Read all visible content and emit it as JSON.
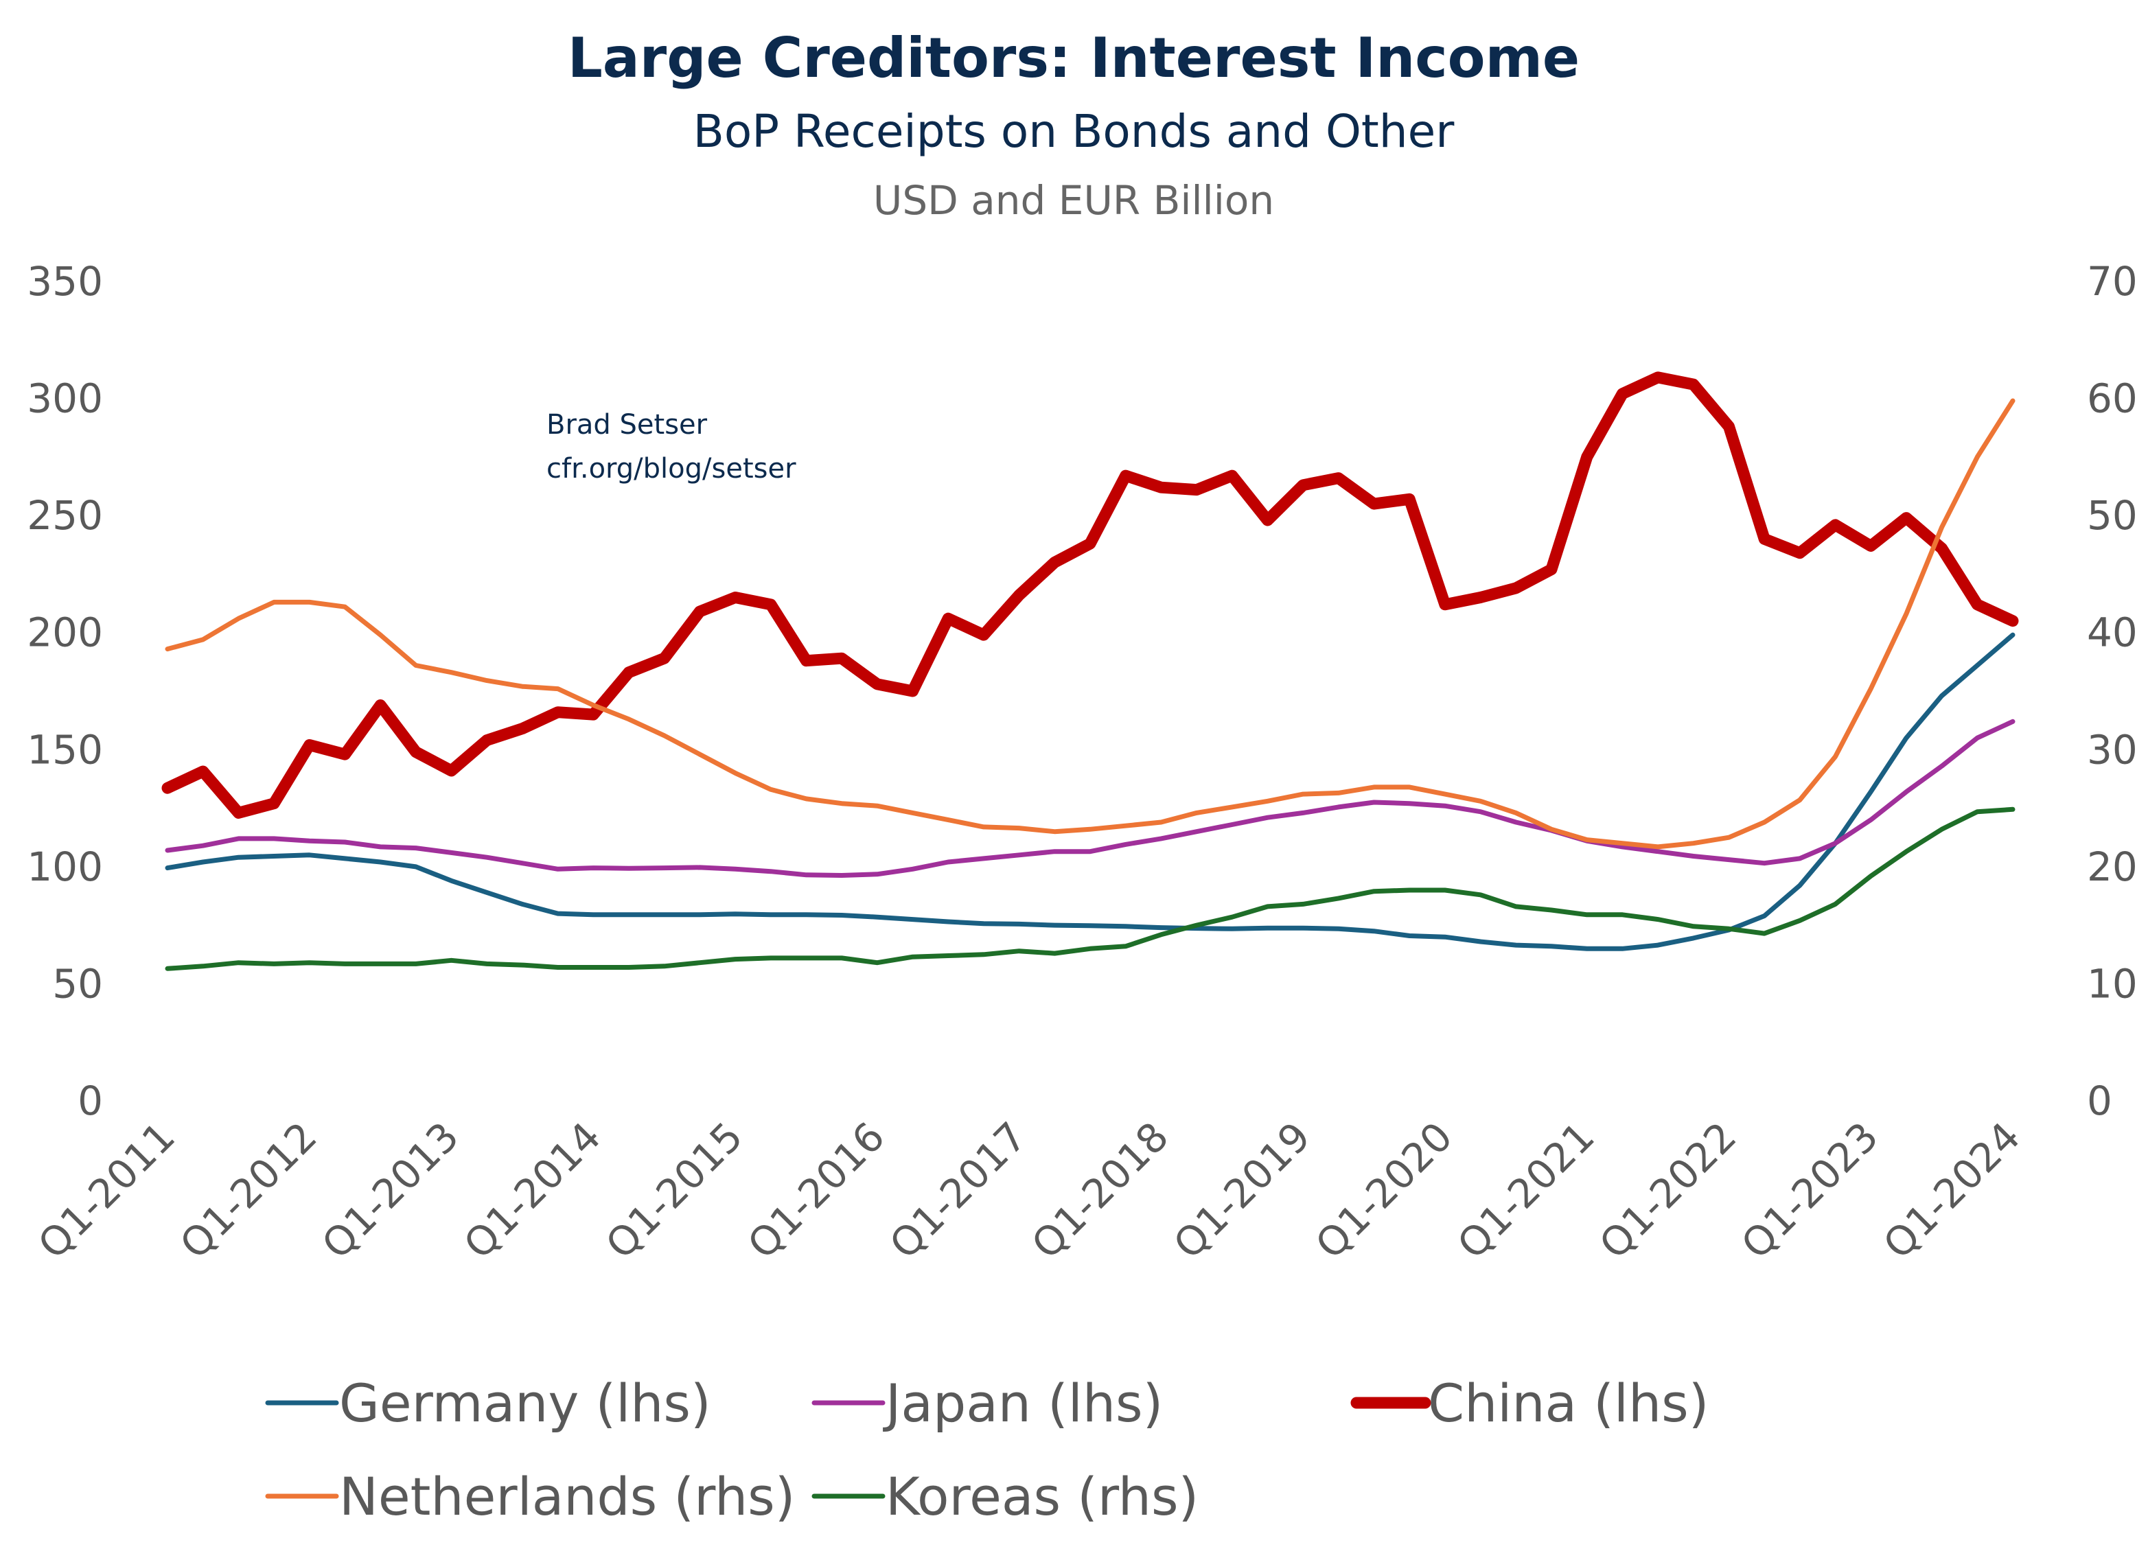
{
  "chart_data": {
    "type": "line",
    "title": "Large Creditors: Interest Income",
    "subtitle": "BoP Receipts on Bonds and Other",
    "units": "USD and EUR Billion",
    "annotation": [
      "Brad Setser",
      "cfr.org/blog/setser"
    ],
    "x_tick_labels": [
      "Q1-2011",
      "Q1-2012",
      "Q1-2013",
      "Q1-2014",
      "Q1-2015",
      "Q1-2016",
      "Q1-2017",
      "Q1-2018",
      "Q1-2019",
      "Q1-2020",
      "Q1-2021",
      "Q1-2022",
      "Q1-2023",
      "Q1-2024"
    ],
    "x_start": "Q1-2011",
    "x_end": "Q1-2024",
    "x_frequency": "quarterly",
    "y_left": {
      "range": [
        0,
        350
      ],
      "ticks": [
        0,
        50,
        100,
        150,
        200,
        250,
        300,
        350
      ]
    },
    "y_right": {
      "range": [
        0,
        70
      ],
      "ticks": [
        0,
        10,
        20,
        30,
        40,
        50,
        60,
        70
      ]
    },
    "grid": false,
    "legend_position": "bottom",
    "series": [
      {
        "name": "Germany (lhs)",
        "axis": "left",
        "color": "#1a5f82",
        "width": "normal",
        "values": [
          99.5,
          102,
          104,
          104.5,
          105,
          103.5,
          102,
          100,
          94,
          89,
          84,
          80,
          79.5,
          79.5,
          79.5,
          79.5,
          79.8,
          79.5,
          79.5,
          79.3,
          78.5,
          77.5,
          76.5,
          75.7,
          75.5,
          75,
          74.8,
          74.5,
          74,
          73.7,
          73.5,
          73.8,
          73.8,
          73.5,
          72.5,
          70.5,
          70,
          68,
          66.5,
          66,
          65,
          65,
          66.5,
          69.5,
          73,
          79,
          92,
          110,
          132,
          155,
          173,
          186,
          199
        ]
      },
      {
        "name": "Japan (lhs)",
        "axis": "left",
        "color": "#a0309a",
        "width": "normal",
        "values": [
          107,
          109,
          112,
          112,
          111,
          110.5,
          108.5,
          108,
          106,
          104,
          101.5,
          99,
          99.5,
          99.3,
          99.5,
          99.7,
          99,
          98,
          96.5,
          96.3,
          96.8,
          99,
          102,
          103.5,
          105,
          106.5,
          106.5,
          109.5,
          112,
          115,
          118,
          121,
          123,
          125.5,
          127.5,
          127,
          126,
          123.5,
          119,
          115.5,
          111,
          108.5,
          106.5,
          104.5,
          103,
          101.5,
          103.5,
          110,
          120,
          132,
          143,
          155,
          162
        ]
      },
      {
        "name": "China (lhs)",
        "axis": "left",
        "color": "#c00000",
        "width": "thick",
        "values": [
          133.6,
          140.7,
          123,
          127,
          152,
          148,
          169,
          149,
          141,
          154,
          159,
          166,
          165,
          183,
          189,
          209,
          215,
          212,
          188,
          189,
          178,
          175,
          206,
          199,
          216,
          230,
          238,
          267,
          262,
          261,
          267,
          248,
          263,
          266,
          255,
          257,
          212,
          215,
          219,
          227,
          275,
          302,
          309,
          306,
          288,
          240,
          234,
          246,
          237,
          249,
          236,
          212,
          205
        ]
      },
      {
        "name": "Netherlands (rhs)",
        "axis": "right",
        "color": "#ed7535",
        "width": "normal",
        "values": [
          38.6,
          39.4,
          41.2,
          42.6,
          42.6,
          42.2,
          39.8,
          37.2,
          36.6,
          35.9,
          35.4,
          35.2,
          33.8,
          32.6,
          31.2,
          29.6,
          28,
          26.6,
          25.8,
          25.4,
          25.2,
          24.6,
          24,
          23.4,
          23.3,
          23,
          23.2,
          23.5,
          23.8,
          24.6,
          25.1,
          25.6,
          26.2,
          26.3,
          26.8,
          26.8,
          26.2,
          25.6,
          24.6,
          23.2,
          22.3,
          22,
          21.7,
          22,
          22.5,
          23.8,
          25.7,
          29.4,
          35.2,
          41.6,
          49,
          55,
          59.8
        ]
      },
      {
        "name": "Koreas (rhs)",
        "axis": "right",
        "color": "#1e6e28",
        "width": "normal",
        "values": [
          11.3,
          11.5,
          11.8,
          11.7,
          11.8,
          11.7,
          11.7,
          11.7,
          12,
          11.7,
          11.6,
          11.4,
          11.4,
          11.4,
          11.5,
          11.8,
          12.1,
          12.2,
          12.2,
          12.2,
          11.8,
          12.3,
          12.4,
          12.5,
          12.8,
          12.6,
          13,
          13.2,
          14.2,
          15,
          15.7,
          16.6,
          16.8,
          17.3,
          17.9,
          18,
          18,
          17.6,
          16.6,
          16.3,
          15.9,
          15.9,
          15.5,
          14.9,
          14.7,
          14.3,
          15.4,
          16.8,
          19.2,
          21.3,
          23.2,
          24.7,
          24.9
        ]
      }
    ]
  }
}
